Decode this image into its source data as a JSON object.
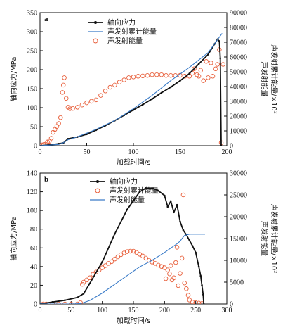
{
  "chart_data": [
    {
      "type": "line",
      "panel_label": "a",
      "xlabel": "加载时间/s",
      "xlim": [
        0,
        200
      ],
      "xticks": [
        0,
        50,
        100,
        150,
        200
      ],
      "ylabel_left": "轴向应力/MPa",
      "ylim_left": [
        0,
        350
      ],
      "yticks_left": [
        0,
        50,
        100,
        150,
        200,
        250,
        300,
        350
      ],
      "ylabel_right": [
        "声发射能量",
        "声发射累计能量/×10²"
      ],
      "ylim_right": [
        0,
        90000
      ],
      "yticks_right": [
        0,
        10000,
        20000,
        30000,
        40000,
        50000,
        60000,
        70000,
        80000,
        90000
      ],
      "legend": [
        {
          "label": "轴向应力",
          "style": "line-marker",
          "color": "#111111"
        },
        {
          "label": "声发射累计能量",
          "style": "line",
          "color": "#3a7bc8"
        },
        {
          "label": "声发射能量",
          "style": "circle",
          "color": "#e8603c"
        }
      ],
      "series": [
        {
          "name": "轴向应力",
          "axis": "left",
          "color": "#111111",
          "x": [
            0,
            10,
            20,
            25,
            30,
            40,
            50,
            60,
            70,
            80,
            90,
            100,
            110,
            120,
            130,
            140,
            150,
            160,
            170,
            180,
            187,
            190,
            192,
            193,
            194
          ],
          "y": [
            0,
            2,
            5,
            7,
            18,
            23,
            30,
            41,
            53,
            66,
            80,
            94,
            108,
            123,
            139,
            154,
            171,
            190,
            215,
            240,
            268,
            280,
            275,
            230,
            0
          ]
        },
        {
          "name": "声发射累计能量",
          "axis": "right",
          "color": "#3a7bc8",
          "x": [
            0,
            20,
            25,
            30,
            40,
            50,
            60,
            80,
            100,
            120,
            140,
            160,
            180,
            195
          ],
          "y": [
            0,
            800,
            2000,
            4000,
            6000,
            8500,
            11000,
            17000,
            25000,
            34000,
            44000,
            53000,
            63000,
            76000
          ]
        },
        {
          "name": "声发射能量",
          "axis": "right",
          "color": "#e8603c",
          "x": [
            2,
            4,
            6,
            8,
            10,
            12,
            14,
            16,
            18,
            20,
            22,
            24,
            25,
            26,
            28,
            30,
            32,
            35,
            40,
            45,
            50,
            55,
            60,
            65,
            70,
            75,
            80,
            85,
            90,
            95,
            100,
            105,
            110,
            115,
            120,
            125,
            130,
            135,
            140,
            145,
            150,
            155,
            160,
            163,
            165,
            168,
            170,
            172,
            175,
            178,
            180,
            183,
            185,
            188,
            190,
            192,
            194,
            196
          ],
          "y": [
            500,
            800,
            1000,
            2500,
            3000,
            5000,
            9000,
            11000,
            13000,
            15000,
            19000,
            36000,
            41000,
            46000,
            32000,
            26000,
            25000,
            25200,
            26000,
            27500,
            29000,
            30000,
            31000,
            34000,
            37000,
            39500,
            41000,
            43000,
            44500,
            46000,
            46500,
            47000,
            47200,
            47500,
            48000,
            48000,
            48000,
            47500,
            47500,
            47500,
            47600,
            47000,
            47000,
            49000,
            52000,
            48000,
            47000,
            51000,
            44000,
            57000,
            46000,
            56000,
            47000,
            52000,
            55000,
            65000,
            2000,
            55000
          ]
        }
      ]
    },
    {
      "type": "line",
      "panel_label": "b",
      "xlabel": "加载时间/s",
      "xlim": [
        0,
        300
      ],
      "xticks": [
        0,
        50,
        100,
        150,
        200,
        250,
        300
      ],
      "ylabel_left": "轴向应力/MPa",
      "ylim_left": [
        0,
        140
      ],
      "yticks_left": [
        0,
        20,
        40,
        60,
        80,
        100,
        120,
        140
      ],
      "ylabel_right": [
        "声发射能量",
        "声发射累计能量/×10²"
      ],
      "ylim_right": [
        0,
        30000
      ],
      "yticks_right": [
        0,
        5000,
        10000,
        15000,
        20000,
        25000,
        30000
      ],
      "legend": [
        {
          "label": "轴向应力",
          "style": "line-marker",
          "color": "#111111"
        },
        {
          "label": "声发射累计能量",
          "style": "circle",
          "color": "#e8603c"
        },
        {
          "label": "声发射能量",
          "style": "line",
          "color": "#3a7bc8"
        }
      ],
      "series": [
        {
          "name": "轴向应力",
          "axis": "left",
          "color": "#111111",
          "x": [
            0,
            20,
            40,
            60,
            70,
            80,
            100,
            120,
            140,
            160,
            170,
            180,
            190,
            200,
            205,
            210,
            215,
            220,
            225,
            230,
            235,
            240,
            245,
            250,
            255,
            258,
            260,
            262,
            263
          ],
          "y": [
            0,
            2,
            4,
            7,
            11,
            22,
            45,
            75,
            101,
            120,
            124,
            124,
            121,
            116,
            104,
            110,
            98,
            106,
            88,
            79,
            74,
            68,
            62,
            55,
            40,
            30,
            20,
            10,
            0
          ]
        },
        {
          "name": "声发射能量",
          "axis": "right",
          "color": "#3a7bc8",
          "x": [
            0,
            50,
            65,
            70,
            80,
            100,
            120,
            140,
            160,
            180,
            200,
            210,
            220,
            225,
            228,
            232,
            240,
            250,
            265
          ],
          "y": [
            0,
            0,
            100,
            300,
            800,
            2500,
            4500,
            6500,
            8500,
            10000,
            11800,
            12800,
            13800,
            14400,
            15000,
            15700,
            16000,
            16000,
            16000
          ]
        },
        {
          "name": "声发射累计能量",
          "axis": "right",
          "color": "#e8603c",
          "x": [
            5,
            10,
            20,
            30,
            40,
            50,
            60,
            65,
            68,
            70,
            75,
            80,
            85,
            90,
            95,
            100,
            105,
            110,
            115,
            120,
            125,
            130,
            135,
            140,
            145,
            150,
            155,
            160,
            165,
            170,
            175,
            180,
            185,
            190,
            195,
            200,
            202,
            205,
            208,
            210,
            212,
            215,
            218,
            220,
            222,
            225,
            228,
            230,
            232,
            235,
            238,
            240,
            245,
            250,
            255,
            260
          ],
          "y": [
            0,
            0,
            0,
            0,
            0,
            0,
            0,
            300,
            4500,
            5000,
            5500,
            6000,
            6800,
            7300,
            7800,
            8300,
            8800,
            9300,
            9700,
            10300,
            10800,
            11300,
            11700,
            12000,
            12100,
            12100,
            11800,
            11400,
            11000,
            10500,
            10000,
            9600,
            9300,
            8900,
            8600,
            8300,
            5800,
            7800,
            6900,
            8800,
            5500,
            6000,
            9500,
            13000,
            4200,
            7000,
            10500,
            25000,
            4800,
            3500,
            2000,
            900,
            400,
            300,
            200,
            100
          ]
        }
      ]
    }
  ]
}
